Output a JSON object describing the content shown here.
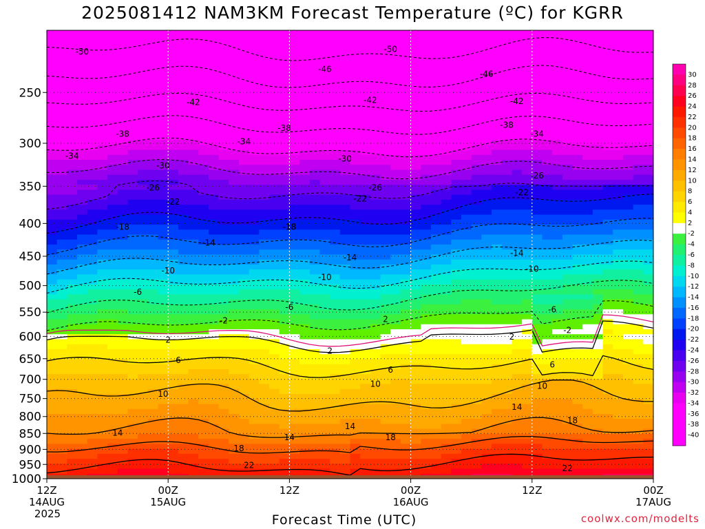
{
  "title": "2025081412 NAM3KM Forecast Temperature (ºC) for KGRR",
  "xlabel": "Forecast Time (UTC)",
  "credit": "coolwx.com/modelts",
  "chart_data": {
    "type": "heatmap",
    "title": "2025081412 NAM3KM Forecast Temperature (ºC) for KGRR",
    "xlabel": "Forecast Time (UTC)",
    "ylabel": "",
    "y_scale": "log-pressure",
    "ylim": [
      1000,
      200
    ],
    "y_ticks": [
      250,
      300,
      350,
      400,
      450,
      500,
      550,
      600,
      650,
      700,
      750,
      800,
      850,
      900,
      950,
      1000
    ],
    "x_ticks": [
      {
        "line1": "12Z",
        "line2": "14AUG",
        "line3": "2025"
      },
      {
        "line1": "00Z",
        "line2": "15AUG",
        "line3": ""
      },
      {
        "line1": "12Z",
        "line2": "",
        "line3": ""
      },
      {
        "line1": "00Z",
        "line2": "16AUG",
        "line3": ""
      },
      {
        "line1": "12Z",
        "line2": "",
        "line3": ""
      },
      {
        "line1": "00Z",
        "line2": "17AUG",
        "line3": ""
      }
    ],
    "x_hours": [
      0,
      12,
      24,
      36,
      48,
      60
    ],
    "colorbar_labels": [
      30,
      28,
      26,
      24,
      22,
      20,
      18,
      16,
      14,
      12,
      10,
      8,
      6,
      4,
      2,
      -2,
      -4,
      -6,
      -8,
      -10,
      -12,
      -14,
      -16,
      -18,
      -20,
      -22,
      -24,
      -26,
      -28,
      -30,
      -32,
      -34,
      -36,
      -38,
      -40
    ],
    "profile": {
      "pressure": [
        1000,
        950,
        900,
        850,
        800,
        750,
        700,
        650,
        600,
        550,
        500,
        450,
        400,
        350,
        300,
        250,
        200
      ],
      "temperature": [
        24,
        21,
        18,
        14,
        12,
        10,
        8,
        5,
        1,
        -4,
        -9,
        -15,
        -21,
        -27,
        -35,
        -44,
        -53
      ]
    },
    "contour_labels": [
      {
        "value": "-50",
        "hour": 3.5,
        "p": 216
      },
      {
        "value": "-50",
        "hour": 34,
        "p": 214
      },
      {
        "value": "-46",
        "hour": 27.5,
        "p": 230
      },
      {
        "value": "-46",
        "hour": 43.5,
        "p": 234
      },
      {
        "value": "-42",
        "hour": 14.5,
        "p": 259
      },
      {
        "value": "-42",
        "hour": 32,
        "p": 257
      },
      {
        "value": "-42",
        "hour": 46.5,
        "p": 258
      },
      {
        "value": "-38",
        "hour": 7.5,
        "p": 290
      },
      {
        "value": "-38",
        "hour": 23.5,
        "p": 284
      },
      {
        "value": "-38",
        "hour": 45.5,
        "p": 281
      },
      {
        "value": "-34",
        "hour": 2.5,
        "p": 314
      },
      {
        "value": "-34",
        "hour": 19.5,
        "p": 298
      },
      {
        "value": "-34",
        "hour": 48.5,
        "p": 290
      },
      {
        "value": "-30",
        "hour": 11.5,
        "p": 325
      },
      {
        "value": "-30",
        "hour": 29.5,
        "p": 317
      },
      {
        "value": "-26",
        "hour": 10.5,
        "p": 352
      },
      {
        "value": "-26",
        "hour": 32.5,
        "p": 352
      },
      {
        "value": "-26",
        "hour": 48.5,
        "p": 337
      },
      {
        "value": "-22",
        "hour": 12.5,
        "p": 370
      },
      {
        "value": "-22",
        "hour": 31,
        "p": 366
      },
      {
        "value": "-22",
        "hour": 47,
        "p": 358
      },
      {
        "value": "-18",
        "hour": 7.5,
        "p": 405
      },
      {
        "value": "-18",
        "hour": 24,
        "p": 405
      },
      {
        "value": "-14",
        "hour": 16,
        "p": 429
      },
      {
        "value": "-14",
        "hour": 30,
        "p": 452
      },
      {
        "value": "-14",
        "hour": 46.5,
        "p": 445
      },
      {
        "value": "-10",
        "hour": 12,
        "p": 474
      },
      {
        "value": "-10",
        "hour": 27.5,
        "p": 485
      },
      {
        "value": "-10",
        "hour": 48,
        "p": 471
      },
      {
        "value": "-6",
        "hour": 9,
        "p": 512
      },
      {
        "value": "-6",
        "hour": 24,
        "p": 540
      },
      {
        "value": "-6",
        "hour": 50,
        "p": 545
      },
      {
        "value": "-2",
        "hour": 17.5,
        "p": 567
      },
      {
        "value": "-2",
        "hour": 51.5,
        "p": 587
      },
      {
        "value": "2",
        "hour": 12,
        "p": 608
      },
      {
        "value": "2",
        "hour": 28,
        "p": 632
      },
      {
        "value": "2",
        "hour": 33.5,
        "p": 564
      },
      {
        "value": "2",
        "hour": 46,
        "p": 601
      },
      {
        "value": "6",
        "hour": 13,
        "p": 654
      },
      {
        "value": "6",
        "hour": 34,
        "p": 677
      },
      {
        "value": "6",
        "hour": 50,
        "p": 664
      },
      {
        "value": "10",
        "hour": 11.5,
        "p": 738
      },
      {
        "value": "10",
        "hour": 32.5,
        "p": 712
      },
      {
        "value": "10",
        "hour": 49,
        "p": 717
      },
      {
        "value": "14",
        "hour": 7,
        "p": 848
      },
      {
        "value": "14",
        "hour": 24,
        "p": 862
      },
      {
        "value": "14",
        "hour": 30,
        "p": 829
      },
      {
        "value": "14",
        "hour": 46.5,
        "p": 773
      },
      {
        "value": "18",
        "hour": 19,
        "p": 897
      },
      {
        "value": "18",
        "hour": 34,
        "p": 862
      },
      {
        "value": "18",
        "hour": 52,
        "p": 811
      },
      {
        "value": "22",
        "hour": 20,
        "p": 953
      },
      {
        "value": "22",
        "hour": 51.5,
        "p": 963
      }
    ],
    "colors": {
      "ground": "#9a5530",
      "freezing_line": "#e0107a",
      "contour": "#000000"
    }
  }
}
